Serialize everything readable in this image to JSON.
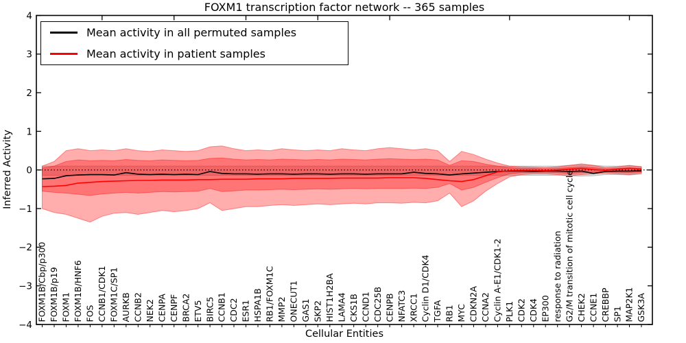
{
  "title": "FOXM1 transcription factor network -- 365 samples",
  "axes": {
    "x_label": "Cellular Entities",
    "y_label": "Inferred Activity",
    "y_ticks": [
      "4",
      "3",
      "2",
      "1",
      "0",
      "−1",
      "−2",
      "−3",
      "−4"
    ]
  },
  "legend": [
    {
      "label": "Mean activity in all permuted samples",
      "color": "#000000"
    },
    {
      "label": "Mean activity in patient samples",
      "color": "#ff0000"
    }
  ],
  "chart_data": {
    "type": "line",
    "title": "FOXM1 transcription factor network -- 365 samples",
    "xlabel": "Cellular Entities",
    "ylabel": "Inferred Activity",
    "ylim": [
      -4,
      4
    ],
    "grid": false,
    "legend_position": "upper left",
    "zero_line": 0,
    "zero_line_style": "dotted",
    "x_tick_label_rotation": 90,
    "y_ticks": [
      "4",
      "3",
      "2",
      "1",
      "0",
      "−1",
      "−2",
      "−3",
      "−4"
    ],
    "y_tick_values": [
      4,
      3,
      2,
      1,
      0,
      -1,
      -2,
      -3,
      -4
    ],
    "categories": [
      "FOXM1B/Cbp/p300",
      "FOXM1B/p19",
      "FOXM1",
      "FOXM1B/HNF6",
      "FOS",
      "CCNB1/CDK1",
      "FOXM1C/SP1",
      "AURKB",
      "CCNB2",
      "NEK2",
      "CENPA",
      "CENPF",
      "BRCA2",
      "ETV5",
      "BIRC5",
      "CCNB1",
      "CDC2",
      "ESR1",
      "HSPA1B",
      "RB1/FOXM1C",
      "MMP2",
      "ONECUT1",
      "GAS1",
      "SKP2",
      "HIST1H2BA",
      "LAMA4",
      "CKS1B",
      "CCND1",
      "CDC25B",
      "CENPB",
      "NFATC3",
      "XRCC1",
      "Cyclin D1/CDK4",
      "TGFA",
      "RB1",
      "MYC",
      "CDKN2A",
      "CCNA2",
      "Cyclin A-E1/CDK1-2",
      "PLK1",
      "CDK2",
      "CDK4",
      "EP300",
      "response to radiation",
      "G2/M transition of mitotic cell cycle",
      "CHEK2",
      "CCNE1",
      "CREBBP",
      "SP1",
      "MAP2K1",
      "GSK3A"
    ],
    "series": [
      {
        "name": "Mean activity in all permuted samples",
        "color": "#000000",
        "values": [
          -0.23,
          -0.22,
          -0.15,
          -0.13,
          -0.12,
          -0.12,
          -0.13,
          -0.07,
          -0.11,
          -0.12,
          -0.11,
          -0.12,
          -0.11,
          -0.12,
          -0.04,
          -0.09,
          -0.1,
          -0.1,
          -0.11,
          -0.1,
          -0.1,
          -0.11,
          -0.1,
          -0.1,
          -0.11,
          -0.1,
          -0.1,
          -0.11,
          -0.1,
          -0.1,
          -0.1,
          -0.06,
          -0.09,
          -0.1,
          -0.13,
          -0.1,
          -0.08,
          -0.06,
          -0.04,
          -0.03,
          -0.03,
          -0.04,
          -0.03,
          -0.03,
          -0.04,
          -0.03,
          -0.09,
          -0.04,
          -0.03,
          -0.03,
          -0.02
        ]
      },
      {
        "name": "Mean activity in patient samples",
        "color": "#ff0000",
        "values": [
          -0.43,
          -0.42,
          -0.4,
          -0.34,
          -0.32,
          -0.3,
          -0.29,
          -0.28,
          -0.27,
          -0.27,
          -0.26,
          -0.26,
          -0.26,
          -0.25,
          -0.25,
          -0.24,
          -0.24,
          -0.24,
          -0.23,
          -0.23,
          -0.23,
          -0.22,
          -0.22,
          -0.22,
          -0.22,
          -0.21,
          -0.21,
          -0.21,
          -0.21,
          -0.2,
          -0.2,
          -0.2,
          -0.22,
          -0.25,
          -0.28,
          -0.3,
          -0.25,
          -0.15,
          -0.05,
          -0.02,
          -0.01,
          -0.01,
          -0.02,
          0.0,
          0.02,
          0.04,
          0.01,
          -0.01,
          0.02,
          0.04,
          0.02
        ]
      }
    ],
    "bands": [
      {
        "name": "permuted-range",
        "color": "#000000",
        "opacity": 0.13,
        "hi": [
          0.1,
          0.1,
          0.1,
          0.1,
          0.1,
          0.1,
          0.1,
          0.1,
          0.1,
          0.1,
          0.1,
          0.1,
          0.1,
          0.1,
          0.1,
          0.1,
          0.1,
          0.1,
          0.1,
          0.1,
          0.1,
          0.1,
          0.1,
          0.1,
          0.1,
          0.1,
          0.1,
          0.1,
          0.1,
          0.1,
          0.1,
          0.1,
          0.1,
          0.1,
          0.1,
          0.1,
          0.1,
          0.1,
          0.1,
          0.1,
          0.1,
          0.1,
          0.1,
          0.1,
          0.12,
          0.13,
          0.12,
          0.1,
          0.1,
          0.11,
          0.09
        ],
        "lo": [
          -0.14,
          -0.14,
          -0.14,
          -0.14,
          -0.14,
          -0.14,
          -0.14,
          -0.14,
          -0.14,
          -0.14,
          -0.14,
          -0.14,
          -0.14,
          -0.14,
          -0.14,
          -0.14,
          -0.14,
          -0.14,
          -0.14,
          -0.14,
          -0.14,
          -0.14,
          -0.14,
          -0.14,
          -0.14,
          -0.14,
          -0.14,
          -0.14,
          -0.14,
          -0.14,
          -0.14,
          -0.14,
          -0.14,
          -0.14,
          -0.14,
          -0.14,
          -0.14,
          -0.14,
          -0.14,
          -0.14,
          -0.14,
          -0.14,
          -0.14,
          -0.14,
          -0.15,
          -0.16,
          -0.15,
          -0.12,
          -0.12,
          -0.13,
          -0.11
        ]
      },
      {
        "name": "patient-range-outer",
        "color": "#ff0000",
        "opacity": 0.32,
        "hi": [
          0.1,
          0.22,
          0.5,
          0.55,
          0.5,
          0.52,
          0.5,
          0.55,
          0.5,
          0.48,
          0.52,
          0.5,
          0.48,
          0.5,
          0.6,
          0.62,
          0.55,
          0.5,
          0.52,
          0.5,
          0.55,
          0.52,
          0.5,
          0.52,
          0.5,
          0.55,
          0.52,
          0.5,
          0.55,
          0.58,
          0.55,
          0.52,
          0.55,
          0.5,
          0.22,
          0.48,
          0.4,
          0.28,
          0.18,
          0.1,
          0.08,
          0.07,
          0.06,
          0.08,
          0.12,
          0.16,
          0.12,
          0.06,
          0.08,
          0.12,
          0.08
        ],
        "lo": [
          -1.0,
          -1.1,
          -1.15,
          -1.25,
          -1.35,
          -1.2,
          -1.12,
          -1.1,
          -1.15,
          -1.1,
          -1.05,
          -1.08,
          -1.05,
          -1.0,
          -0.85,
          -1.05,
          -1.0,
          -0.95,
          -0.95,
          -0.92,
          -0.9,
          -0.92,
          -0.9,
          -0.88,
          -0.9,
          -0.88,
          -0.86,
          -0.88,
          -0.85,
          -0.85,
          -0.86,
          -0.84,
          -0.85,
          -0.8,
          -0.6,
          -0.95,
          -0.8,
          -0.55,
          -0.35,
          -0.18,
          -0.12,
          -0.1,
          -0.1,
          -0.12,
          -0.15,
          -0.12,
          -0.1,
          -0.08,
          -0.1,
          -0.12,
          -0.08
        ]
      },
      {
        "name": "patient-range-inner",
        "color": "#ff0000",
        "opacity": 0.32,
        "hi": [
          0.05,
          0.1,
          0.22,
          0.26,
          0.24,
          0.25,
          0.24,
          0.27,
          0.25,
          0.24,
          0.26,
          0.25,
          0.24,
          0.25,
          0.3,
          0.31,
          0.28,
          0.26,
          0.27,
          0.26,
          0.28,
          0.27,
          0.26,
          0.27,
          0.26,
          0.28,
          0.27,
          0.26,
          0.28,
          0.29,
          0.28,
          0.27,
          0.28,
          0.26,
          0.12,
          0.24,
          0.22,
          0.15,
          0.1,
          0.06,
          0.04,
          0.04,
          0.03,
          0.04,
          0.06,
          0.08,
          0.06,
          0.03,
          0.04,
          0.06,
          0.04
        ],
        "lo": [
          -0.55,
          -0.58,
          -0.6,
          -0.63,
          -0.66,
          -0.62,
          -0.6,
          -0.58,
          -0.6,
          -0.58,
          -0.56,
          -0.57,
          -0.56,
          -0.55,
          -0.48,
          -0.56,
          -0.54,
          -0.52,
          -0.52,
          -0.51,
          -0.5,
          -0.51,
          -0.5,
          -0.49,
          -0.5,
          -0.49,
          -0.48,
          -0.49,
          -0.48,
          -0.48,
          -0.48,
          -0.47,
          -0.48,
          -0.45,
          -0.35,
          -0.52,
          -0.45,
          -0.32,
          -0.2,
          -0.1,
          -0.07,
          -0.06,
          -0.06,
          -0.07,
          -0.09,
          -0.07,
          -0.06,
          -0.05,
          -0.06,
          -0.07,
          -0.05
        ]
      }
    ]
  }
}
